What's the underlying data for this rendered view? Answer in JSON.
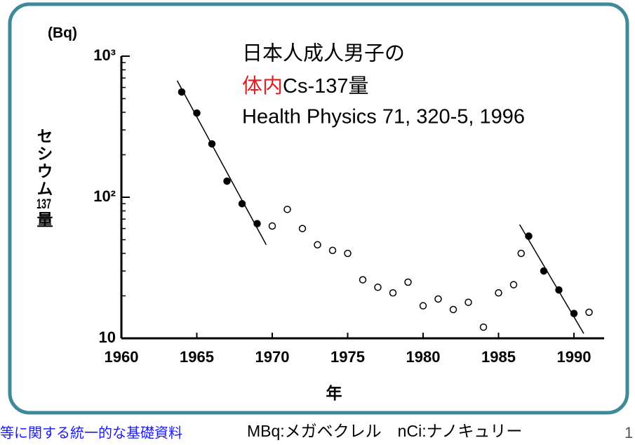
{
  "chart_data": {
    "type": "scatter",
    "unit_label": "(Bq)",
    "title": {
      "line1": "日本人成人男子の",
      "line2_red": "体内",
      "line2": "Cs-137量",
      "line3": "Health Physics 71, 320-5, 1996"
    },
    "xlabel": "年",
    "ylabel": "セシウム137量",
    "log_y": true,
    "xlim": [
      1960,
      1992
    ],
    "xticks": [
      1960,
      1965,
      1970,
      1975,
      1980,
      1985,
      1990
    ],
    "ylim": [
      10,
      1000
    ],
    "yticks": [
      10,
      {
        "value": 100,
        "label": "10²"
      },
      {
        "value": 1000,
        "label": "10³"
      }
    ],
    "yminor": [
      20,
      30,
      40,
      50,
      60,
      70,
      80,
      90,
      200,
      300,
      400,
      500,
      600,
      700,
      800,
      900
    ],
    "series": [
      {
        "marker": "filled",
        "color": "#000000",
        "x": [
          1964,
          1965,
          1966,
          1967,
          1968,
          1969,
          1987,
          1988,
          1989,
          1990
        ],
        "values": [
          557,
          395,
          239,
          130,
          90,
          65,
          53,
          30,
          22,
          15
        ]
      },
      {
        "marker": "open",
        "color": "#000000",
        "x": [
          1970,
          1971,
          1972,
          1973,
          1974,
          1975,
          1976,
          1977,
          1978,
          1979,
          1980,
          1981,
          1982,
          1983,
          1984,
          1985,
          1986,
          1986.5,
          1991
        ],
        "values": [
          62.5,
          82,
          60,
          46,
          42,
          40,
          26,
          23,
          21,
          25,
          17,
          19,
          16,
          18,
          12,
          21,
          24,
          40,
          15.3
        ]
      }
    ],
    "trend_lines": [
      {
        "x": [
          1963.7,
          1969.6
        ],
        "values": [
          670,
          46
        ]
      },
      {
        "x": [
          1986.4,
          1990.65
        ],
        "values": [
          64,
          10.8
        ]
      }
    ]
  },
  "footer": {
    "source_fragment": "等に関する統一的な基礎資料",
    "units": "MBq:メガベクレル　nCi:ナノキュリー",
    "page_number": "1"
  }
}
